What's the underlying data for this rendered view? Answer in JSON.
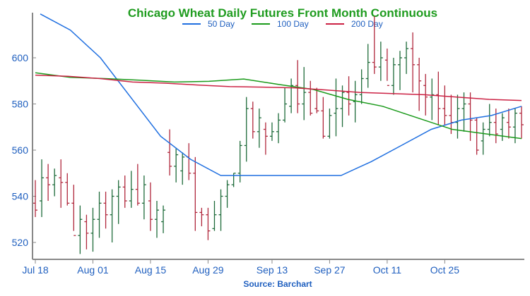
{
  "chart_data": {
    "type": "ohlc",
    "title": "Chicago Wheat Daily Futures Front Month Continuous",
    "source": "Source: Barchart",
    "xlabel": "",
    "ylabel": "",
    "x_tick_labels": [
      "Jul 18",
      "Aug 01",
      "Aug 15",
      "Aug 29",
      "Sep 13",
      "Sep 27",
      "Oct 11",
      "Oct 25"
    ],
    "y_ticks": [
      520,
      540,
      560,
      580,
      600
    ],
    "ylim": [
      515,
      618
    ],
    "grid": false,
    "legend_position": "top-center",
    "colors": {
      "title": "#1f9c1f",
      "axis_text": "#1f5fbf",
      "source": "#1f5fbf",
      "up_bar": "#1e6b3a",
      "down_bar": "#b0273c",
      "axis": "#888888"
    },
    "series": [
      {
        "name": "50 Day",
        "color": "#1f6fe0",
        "values": [
          619,
          612,
          600,
          583,
          566,
          556,
          549,
          549,
          549,
          549,
          549,
          555,
          562,
          569,
          573,
          575,
          579
        ]
      },
      {
        "name": "100 Day",
        "color": "#1a9a1a",
        "values": [
          593.5,
          591.5,
          591.0,
          590.3,
          589.5,
          589.8,
          590.8,
          588.5,
          586.3,
          582.0,
          579.0,
          574.0,
          569.0,
          567.0,
          565.0
        ]
      },
      {
        "name": "200 Day",
        "color": "#cc2244",
        "values": [
          592.5,
          592.0,
          591.0,
          589.5,
          589.0,
          588.2,
          587.5,
          587.3,
          587.0,
          586.0,
          585.0,
          584.5,
          584.0,
          583.0,
          582.0,
          581.5
        ]
      }
    ],
    "bars": [
      [
        547,
        531,
        537,
        534
      ],
      [
        556,
        531,
        538,
        548
      ],
      [
        554,
        538,
        548,
        545
      ],
      [
        552,
        540,
        545,
        549
      ],
      [
        556,
        535,
        548,
        546
      ],
      [
        550,
        536,
        546,
        537
      ],
      [
        545,
        525,
        537,
        523
      ],
      [
        536,
        515,
        523,
        530
      ],
      [
        532,
        517,
        529,
        524
      ],
      [
        535,
        516,
        524,
        530
      ],
      [
        542,
        522,
        530,
        537
      ],
      [
        542,
        526,
        537,
        532
      ],
      [
        543,
        520,
        532,
        540
      ],
      [
        547,
        528,
        540,
        544
      ],
      [
        549,
        535,
        544,
        538
      ],
      [
        551,
        535,
        538,
        543
      ],
      [
        554,
        536,
        543,
        537
      ],
      [
        549,
        530,
        537,
        545
      ],
      [
        546,
        525,
        538,
        530
      ],
      [
        538,
        522,
        530,
        534
      ],
      [
        536,
        524,
        529,
        534
      ],
      [
        569,
        549,
        559,
        553
      ],
      [
        561,
        546,
        553,
        558
      ],
      [
        559,
        545,
        551,
        557
      ],
      [
        563,
        547,
        557,
        550
      ],
      [
        557,
        525,
        550,
        533
      ],
      [
        535,
        527,
        533,
        532
      ],
      [
        535,
        521,
        532,
        525
      ],
      [
        538,
        525,
        526,
        532
      ],
      [
        543,
        525,
        532,
        540
      ],
      [
        547,
        535,
        540,
        545
      ],
      [
        550,
        544,
        545,
        550
      ],
      [
        564,
        546,
        550,
        562
      ],
      [
        583,
        555,
        562,
        578
      ],
      [
        581,
        565,
        578,
        568
      ],
      [
        578,
        561,
        568,
        574
      ],
      [
        572,
        558,
        569,
        566
      ],
      [
        572,
        564,
        566,
        568
      ],
      [
        576,
        563,
        568,
        573
      ],
      [
        587,
        572,
        573,
        580
      ],
      [
        591,
        576,
        579,
        588
      ],
      [
        599,
        576,
        588,
        580
      ],
      [
        596,
        573,
        580,
        585
      ],
      [
        590,
        575,
        585,
        576
      ],
      [
        587,
        576,
        578,
        577
      ],
      [
        583,
        565,
        577,
        566
      ],
      [
        578,
        565,
        566,
        575
      ],
      [
        591,
        566,
        576,
        578
      ],
      [
        588,
        570,
        578,
        585
      ],
      [
        592,
        575,
        585,
        580
      ],
      [
        590,
        572,
        581,
        584
      ],
      [
        595,
        580,
        584,
        591
      ],
      [
        606,
        587,
        591,
        598
      ],
      [
        618,
        593,
        598,
        596
      ],
      [
        607,
        590,
        596,
        600
      ],
      [
        604,
        590,
        599,
        588
      ],
      [
        600,
        584,
        588,
        597
      ],
      [
        603,
        586,
        597,
        600
      ],
      [
        607,
        593,
        600,
        604
      ],
      [
        611,
        585,
        604,
        597
      ],
      [
        600,
        577,
        597,
        590
      ],
      [
        593,
        575,
        588,
        583
      ],
      [
        591,
        573,
        583,
        584
      ],
      [
        594,
        571,
        584,
        578
      ],
      [
        588,
        571,
        578,
        575
      ],
      [
        584,
        567,
        575,
        572
      ],
      [
        584,
        565,
        572,
        578
      ],
      [
        585,
        568,
        578,
        580
      ],
      [
        585,
        564,
        580,
        573
      ],
      [
        574,
        558,
        573,
        560
      ],
      [
        572,
        558,
        564,
        569
      ],
      [
        580,
        566,
        569,
        572
      ],
      [
        578,
        563,
        572,
        567
      ],
      [
        576,
        564,
        569,
        574
      ],
      [
        578,
        565,
        572,
        570
      ],
      [
        578,
        563,
        570,
        576
      ],
      [
        579,
        565,
        576,
        571
      ]
    ]
  }
}
